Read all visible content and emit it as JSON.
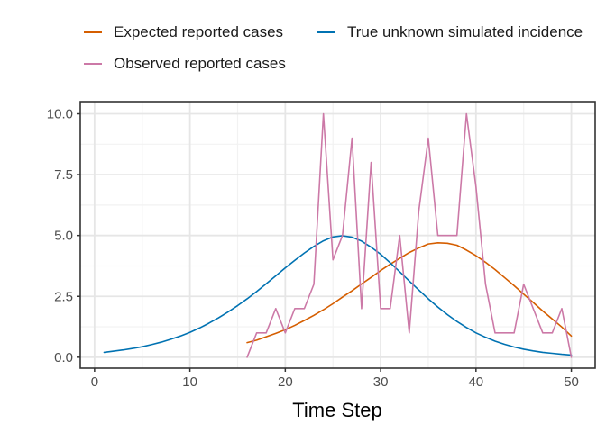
{
  "chart_data": {
    "type": "line",
    "title": "",
    "xlabel": "Time Step",
    "ylabel": "",
    "xlim": [
      -1.5,
      52.5
    ],
    "ylim": [
      -0.45,
      10.5
    ],
    "x_ticks": [
      0,
      10,
      20,
      30,
      40,
      50
    ],
    "x_tick_labels": [
      "0",
      "10",
      "20",
      "30",
      "40",
      "50"
    ],
    "y_ticks": [
      0,
      2.5,
      5,
      7.5,
      10
    ],
    "y_tick_labels": [
      "0.0",
      "2.5",
      "5.0",
      "7.5",
      "10.0"
    ],
    "grid": true,
    "legend_position": "top",
    "series": [
      {
        "name": "Expected reported cases",
        "color": "#d55e00",
        "x": [
          16,
          17,
          18,
          19,
          20,
          21,
          22,
          23,
          24,
          25,
          26,
          27,
          28,
          29,
          30,
          31,
          32,
          33,
          34,
          35,
          36,
          37,
          38,
          39,
          40,
          41,
          42,
          43,
          44,
          45,
          46,
          47,
          48,
          49,
          50
        ],
        "values": [
          0.6,
          0.7,
          0.84,
          0.98,
          1.13,
          1.31,
          1.51,
          1.72,
          1.95,
          2.2,
          2.47,
          2.73,
          3.01,
          3.28,
          3.56,
          3.82,
          4.06,
          4.3,
          4.49,
          4.65,
          4.7,
          4.68,
          4.6,
          4.4,
          4.17,
          3.9,
          3.6,
          3.27,
          2.94,
          2.59,
          2.25,
          1.9,
          1.57,
          1.24,
          0.87
        ]
      },
      {
        "name": "True unknown simulated incidence",
        "color": "#0072b2",
        "x": [
          1,
          2,
          3,
          4,
          5,
          6,
          7,
          8,
          9,
          10,
          11,
          12,
          13,
          14,
          15,
          16,
          17,
          18,
          19,
          20,
          21,
          22,
          23,
          24,
          25,
          26,
          27,
          28,
          29,
          30,
          31,
          32,
          33,
          34,
          35,
          36,
          37,
          38,
          39,
          40,
          41,
          42,
          43,
          44,
          45,
          46,
          47,
          48,
          49,
          50
        ],
        "values": [
          0.2,
          0.25,
          0.3,
          0.36,
          0.43,
          0.52,
          0.62,
          0.74,
          0.87,
          1.02,
          1.2,
          1.4,
          1.62,
          1.86,
          2.12,
          2.4,
          2.7,
          3.02,
          3.34,
          3.67,
          3.98,
          4.28,
          4.55,
          4.78,
          4.94,
          4.99,
          4.93,
          4.77,
          4.52,
          4.23,
          3.88,
          3.51,
          3.13,
          2.76,
          2.4,
          2.06,
          1.75,
          1.47,
          1.22,
          1.0,
          0.82,
          0.66,
          0.53,
          0.42,
          0.33,
          0.26,
          0.2,
          0.16,
          0.12,
          0.09
        ]
      },
      {
        "name": "Observed reported cases",
        "color": "#cc79a7",
        "x": [
          16,
          17,
          18,
          19,
          20,
          21,
          22,
          23,
          24,
          25,
          26,
          27,
          28,
          29,
          30,
          31,
          32,
          33,
          34,
          35,
          36,
          37,
          38,
          39,
          40,
          41,
          42,
          43,
          44,
          45,
          46,
          47,
          48,
          49,
          50
        ],
        "values": [
          0,
          1,
          1,
          2,
          1,
          2,
          2,
          3,
          10,
          4,
          5,
          9,
          2,
          8,
          2,
          2,
          5,
          1,
          6,
          9,
          5,
          5,
          5,
          10,
          7,
          3,
          1,
          1,
          1,
          3,
          2,
          1,
          1,
          2,
          0
        ]
      }
    ]
  }
}
